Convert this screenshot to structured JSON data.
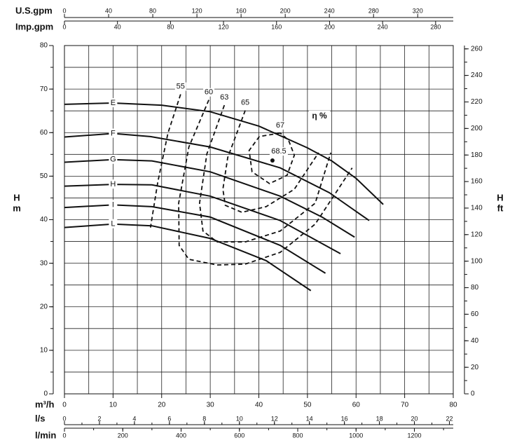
{
  "chart_data": {
    "type": "line",
    "xlabel": "m³/h",
    "ylabel": [
      "H",
      "m"
    ],
    "y2label": [
      "H",
      "ft"
    ],
    "xlim": [
      0,
      80
    ],
    "xticks": [
      0,
      10,
      20,
      30,
      40,
      50,
      60,
      70,
      80
    ],
    "ylim": [
      0,
      80
    ],
    "yticks": [
      0,
      10,
      20,
      30,
      40,
      50,
      60,
      70,
      80
    ],
    "y2lim": [
      0,
      262.5
    ],
    "y2ticks": [
      0,
      20,
      40,
      60,
      80,
      100,
      120,
      140,
      160,
      180,
      200,
      220,
      240,
      260
    ],
    "grid": true,
    "grid_step": 5,
    "y_minor_step": 5,
    "y2_minor_step": 10,
    "extra_x_axes": [
      {
        "name": "U.S.gpm",
        "lim": [
          0,
          352.2
        ],
        "ticks": [
          0,
          40,
          80,
          120,
          160,
          200,
          240,
          280,
          320
        ]
      },
      {
        "name": "Imp.gpm",
        "lim": [
          0,
          293.3
        ],
        "ticks": [
          0,
          40,
          80,
          120,
          160,
          200,
          240,
          280
        ]
      },
      {
        "name": "l/s",
        "lim": [
          0,
          22.22
        ],
        "ticks": [
          0,
          2,
          4,
          6,
          8,
          10,
          12,
          14,
          16,
          18,
          20,
          22
        ],
        "minor_step": 1
      },
      {
        "name": "l/min",
        "lim": [
          0,
          1333.3
        ],
        "ticks": [
          0,
          200,
          400,
          600,
          800,
          1000,
          1200
        ],
        "minor_step": 100
      }
    ],
    "series": [
      {
        "name": "E",
        "color": "#111111",
        "x": [
          0,
          10,
          20,
          30,
          40,
          50,
          55,
          60,
          65.6
        ],
        "values": [
          66.5,
          66.8,
          66.3,
          64.8,
          61.5,
          56.5,
          53.5,
          49.5,
          43.5
        ]
      },
      {
        "name": "F",
        "color": "#111111",
        "x": [
          0,
          10,
          17.7,
          30,
          44.4,
          54.5,
          62.7
        ],
        "values": [
          59,
          59.8,
          59.1,
          56.7,
          51.9,
          46.2,
          39.8
        ]
      },
      {
        "name": "G",
        "color": "#111111",
        "x": [
          0,
          10,
          18,
          30,
          44.4,
          53,
          59.7
        ],
        "values": [
          53.2,
          53.8,
          53.5,
          51,
          45.4,
          40.6,
          36
        ]
      },
      {
        "name": "H",
        "color": "#111111",
        "x": [
          0,
          10,
          18,
          30,
          44.4,
          56.8
        ],
        "values": [
          47.7,
          48.1,
          48,
          45.4,
          39.8,
          32.2
        ]
      },
      {
        "name": "I",
        "color": "#111111",
        "x": [
          0,
          10,
          18,
          30,
          44.4,
          53.7
        ],
        "values": [
          42.8,
          43.4,
          43,
          40.6,
          34.1,
          27.7
        ]
      },
      {
        "name": "L",
        "color": "#111111",
        "x": [
          0,
          10,
          18,
          30,
          41.5,
          50.7
        ],
        "values": [
          38.2,
          39,
          38.6,
          35.7,
          30.6,
          23.7
        ]
      }
    ],
    "efficiency": {
      "label": "η %",
      "color": "#111111",
      "series": [
        {
          "name": "55",
          "x": [
            23.9,
            21.3,
            19.2,
            17.7
          ],
          "values": [
            68.8,
            59.9,
            48.6,
            38.2
          ]
        },
        {
          "name": "60",
          "x": [
            29.7,
            25.6,
            23.5,
            23.6,
            25.6,
            31.4,
            37.2,
            44.4,
            51.6,
            59.2
          ],
          "values": [
            67.5,
            56.7,
            43.8,
            34.1,
            30.9,
            29.6,
            29.8,
            32.5,
            39,
            51.9
          ]
        },
        {
          "name": "63",
          "x": [
            32.9,
            29.3,
            27.8,
            28.5,
            31.4,
            37.2,
            44.4,
            51.6,
            54.8
          ],
          "values": [
            66.3,
            55.1,
            43.8,
            37.4,
            34.9,
            34.9,
            37.4,
            43.8,
            55.4
          ]
        },
        {
          "name": "65",
          "x": [
            37.2,
            33.6,
            32.6,
            33.1,
            36.5,
            41.5,
            47.3,
            52.3
          ],
          "values": [
            65.1,
            54.3,
            47,
            43.3,
            41.7,
            43,
            47,
            55.4
          ]
        },
        {
          "name": "67",
          "x": [
            44.4,
            40.1,
            38,
            38.6,
            42.2,
            45.8,
            47.3,
            46.1,
            44.4
          ],
          "values": [
            59.9,
            59.1,
            55.9,
            51,
            48.3,
            50.2,
            54.8,
            58.3,
            59.9
          ]
        }
      ],
      "best_point": {
        "name": "68.5",
        "x": 42.8,
        "value": 53.6
      }
    }
  }
}
